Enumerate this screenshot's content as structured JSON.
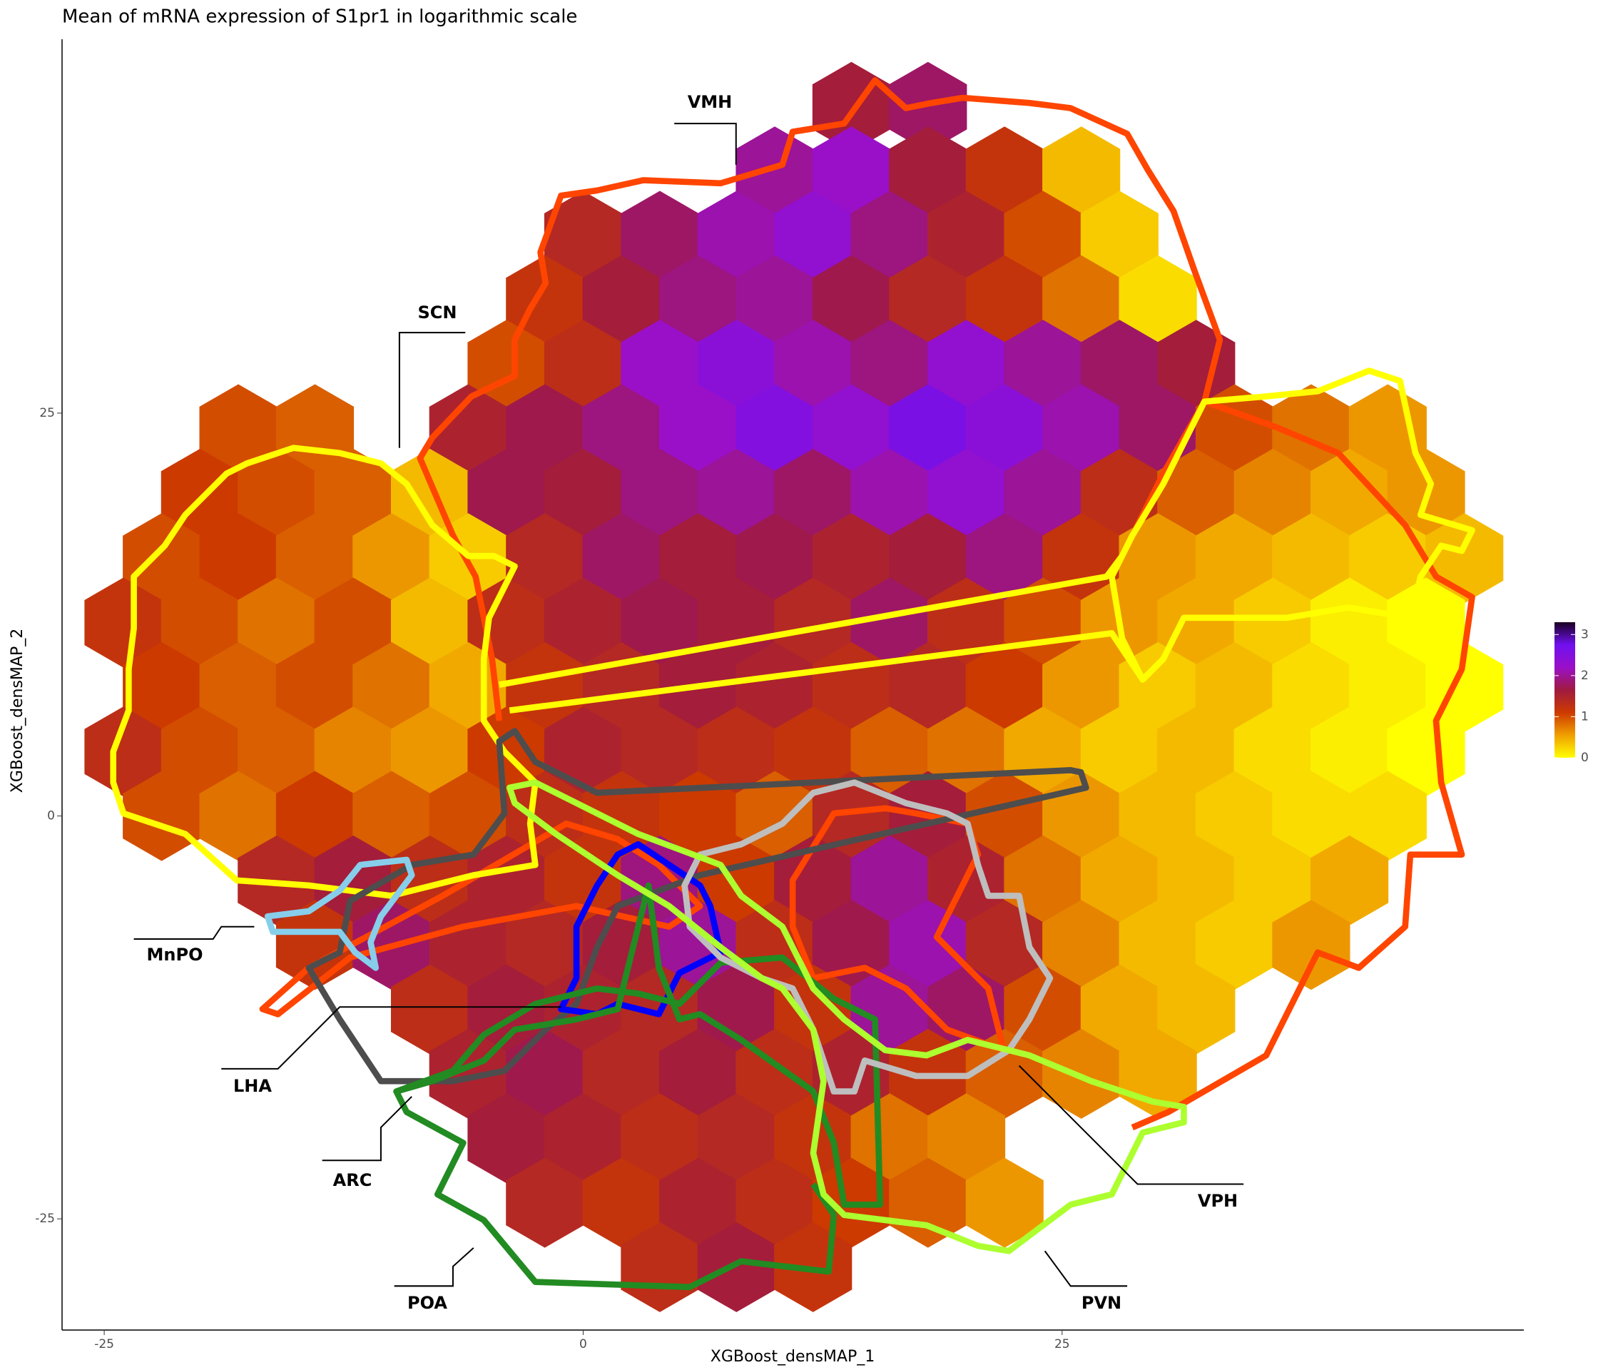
{
  "chart_data": {
    "type": "hexbin",
    "title": "Mean of mRNA expression of S1pr1 in logarithmic scale",
    "x_label": "XGBoost_densMAP_1",
    "y_label": "XGBoost_densMAP_2",
    "xlim": [
      -27.2,
      49.1
    ],
    "xticks": [
      -25,
      0,
      25
    ],
    "ylim": [
      -31.9,
      48.2
    ],
    "yticks": [
      -25,
      0,
      25
    ],
    "grid": false,
    "colorbar": {
      "lim": [
        0,
        3.3
      ],
      "ticks": [
        0,
        1,
        2,
        3
      ],
      "colors": [
        "#ffff00",
        "#f0a000",
        "#cc3a00",
        "#a01a40",
        "#9a10c8",
        "#7010f0",
        "#1a0020"
      ]
    },
    "annotations": [
      "VMH",
      "SCN",
      "MnPO",
      "LHA",
      "ARC",
      "POA",
      "VPH",
      "PVN"
    ],
    "hexbins": [
      {
        "y": 44,
        "x": [
          14,
          18
        ],
        "values": [
          1.6,
          1.8
        ]
      },
      {
        "y": 40,
        "x": [
          10,
          14,
          18,
          22,
          26
        ],
        "values": [
          2.0,
          2.2,
          1.6,
          1.2,
          0.4
        ]
      },
      {
        "y": 36,
        "x": [
          0,
          4,
          8,
          12,
          16,
          20,
          24,
          28
        ],
        "values": [
          1.4,
          1.8,
          2.1,
          2.3,
          1.9,
          1.5,
          1.0,
          0.3
        ]
      },
      {
        "y": 32,
        "x": [
          -2,
          2,
          6,
          10,
          14,
          18,
          22,
          26,
          30
        ],
        "values": [
          1.2,
          1.6,
          1.9,
          2.0,
          1.7,
          1.4,
          1.2,
          0.8,
          0.2
        ]
      },
      {
        "y": 28,
        "x": [
          -4,
          0,
          4,
          8,
          12,
          16,
          20,
          24,
          28,
          32
        ],
        "values": [
          1.0,
          1.3,
          2.2,
          2.4,
          2.1,
          1.9,
          2.3,
          2.0,
          1.8,
          1.6
        ]
      },
      {
        "y": 24,
        "x": [
          -18,
          -14,
          -6,
          -2,
          2,
          6,
          10,
          14,
          18,
          22,
          26,
          30,
          34,
          38,
          42
        ],
        "values": [
          1.0,
          0.9,
          1.5,
          1.7,
          1.9,
          2.2,
          2.5,
          2.3,
          2.6,
          2.4,
          2.1,
          1.8,
          1.0,
          0.8,
          0.6
        ]
      },
      {
        "y": 20,
        "x": [
          -20,
          -16,
          -12,
          -8,
          -4,
          0,
          4,
          8,
          12,
          16,
          20,
          24,
          28,
          32,
          36,
          40,
          44
        ],
        "values": [
          1.1,
          1.0,
          0.9,
          0.4,
          1.7,
          1.6,
          1.9,
          2.0,
          1.8,
          2.1,
          2.3,
          2.0,
          1.3,
          0.9,
          0.7,
          0.5,
          0.6
        ]
      },
      {
        "y": 16,
        "x": [
          -22,
          -18,
          -14,
          -10,
          -6,
          -2,
          2,
          6,
          10,
          14,
          18,
          22,
          26,
          30,
          34,
          38,
          42,
          46
        ],
        "values": [
          1.0,
          1.1,
          0.9,
          0.6,
          0.3,
          1.4,
          1.8,
          1.6,
          1.7,
          1.5,
          1.6,
          1.9,
          1.2,
          0.6,
          0.5,
          0.4,
          0.3,
          0.4
        ]
      },
      {
        "y": 12,
        "x": [
          -24,
          -20,
          -16,
          -12,
          -8,
          -4,
          0,
          4,
          8,
          12,
          16,
          20,
          24,
          28,
          32,
          36,
          40,
          44
        ],
        "values": [
          1.2,
          1.0,
          0.8,
          1.0,
          0.4,
          1.3,
          1.5,
          1.7,
          1.6,
          1.4,
          1.8,
          1.3,
          1.0,
          0.6,
          0.5,
          0.3,
          0.1,
          0.0
        ]
      },
      {
        "y": 8,
        "x": [
          -22,
          -18,
          -14,
          -10,
          -6,
          -2,
          2,
          6,
          10,
          14,
          18,
          22,
          26,
          30,
          34,
          38,
          42,
          46
        ],
        "values": [
          1.1,
          0.9,
          1.0,
          0.8,
          0.5,
          1.2,
          1.4,
          1.6,
          1.5,
          1.3,
          1.4,
          1.1,
          0.6,
          0.3,
          0.4,
          0.2,
          0.1,
          0.0
        ]
      },
      {
        "y": 4,
        "x": [
          -24,
          -20,
          -16,
          -12,
          -8,
          -4,
          0,
          4,
          8,
          12,
          16,
          20,
          24,
          28,
          32,
          36,
          40,
          44
        ],
        "values": [
          1.3,
          1.0,
          0.9,
          0.7,
          0.6,
          1.1,
          1.5,
          1.4,
          1.3,
          1.2,
          0.9,
          0.8,
          0.5,
          0.3,
          0.4,
          0.2,
          0.1,
          0.0
        ]
      },
      {
        "y": 0,
        "x": [
          -22,
          -18,
          -14,
          -10,
          -6,
          -2,
          2,
          6,
          10,
          14,
          18,
          22,
          26,
          30,
          34,
          38,
          42
        ],
        "values": [
          1.0,
          0.8,
          1.1,
          0.9,
          1.0,
          1.3,
          1.2,
          1.1,
          0.9,
          1.4,
          1.6,
          1.0,
          0.6,
          0.4,
          0.3,
          0.2,
          0.2
        ]
      },
      {
        "y": -4,
        "x": [
          -16,
          -12,
          -8,
          -4,
          0,
          4,
          8,
          12,
          16,
          20,
          24,
          28,
          32,
          36,
          40
        ],
        "values": [
          1.4,
          1.6,
          1.3,
          1.5,
          1.2,
          1.9,
          1.1,
          1.6,
          2.0,
          1.5,
          0.8,
          0.5,
          0.4,
          0.3,
          0.5
        ]
      },
      {
        "y": -8,
        "x": [
          -14,
          -10,
          -6,
          -2,
          2,
          6,
          10,
          14,
          18,
          22,
          26,
          30,
          34,
          38
        ],
        "values": [
          1.2,
          1.8,
          1.5,
          1.4,
          1.6,
          2.0,
          1.3,
          1.7,
          2.1,
          1.4,
          0.7,
          0.4,
          0.3,
          0.6
        ]
      },
      {
        "y": -12,
        "x": [
          -8,
          -4,
          0,
          4,
          8,
          12,
          16,
          20,
          24,
          28,
          32
        ],
        "values": [
          1.3,
          1.6,
          1.5,
          1.4,
          1.7,
          1.2,
          2.0,
          1.8,
          1.0,
          0.5,
          0.4
        ]
      },
      {
        "y": -16,
        "x": [
          -6,
          -2,
          2,
          6,
          10,
          14,
          18,
          22,
          26,
          30
        ],
        "values": [
          1.5,
          1.7,
          1.4,
          1.6,
          1.3,
          1.5,
          1.2,
          0.9,
          0.7,
          0.5
        ]
      },
      {
        "y": -20,
        "x": [
          -4,
          0,
          4,
          8,
          12,
          16,
          20
        ],
        "values": [
          1.6,
          1.5,
          1.3,
          1.4,
          1.2,
          0.8,
          0.7
        ]
      },
      {
        "y": -24,
        "x": [
          -2,
          2,
          6,
          10,
          14,
          18,
          22
        ],
        "values": [
          1.4,
          1.2,
          1.5,
          1.3,
          1.1,
          0.9,
          0.6
        ]
      },
      {
        "y": -28,
        "x": [
          4,
          8,
          12
        ],
        "values": [
          1.3,
          1.6,
          1.2
        ]
      }
    ]
  }
}
